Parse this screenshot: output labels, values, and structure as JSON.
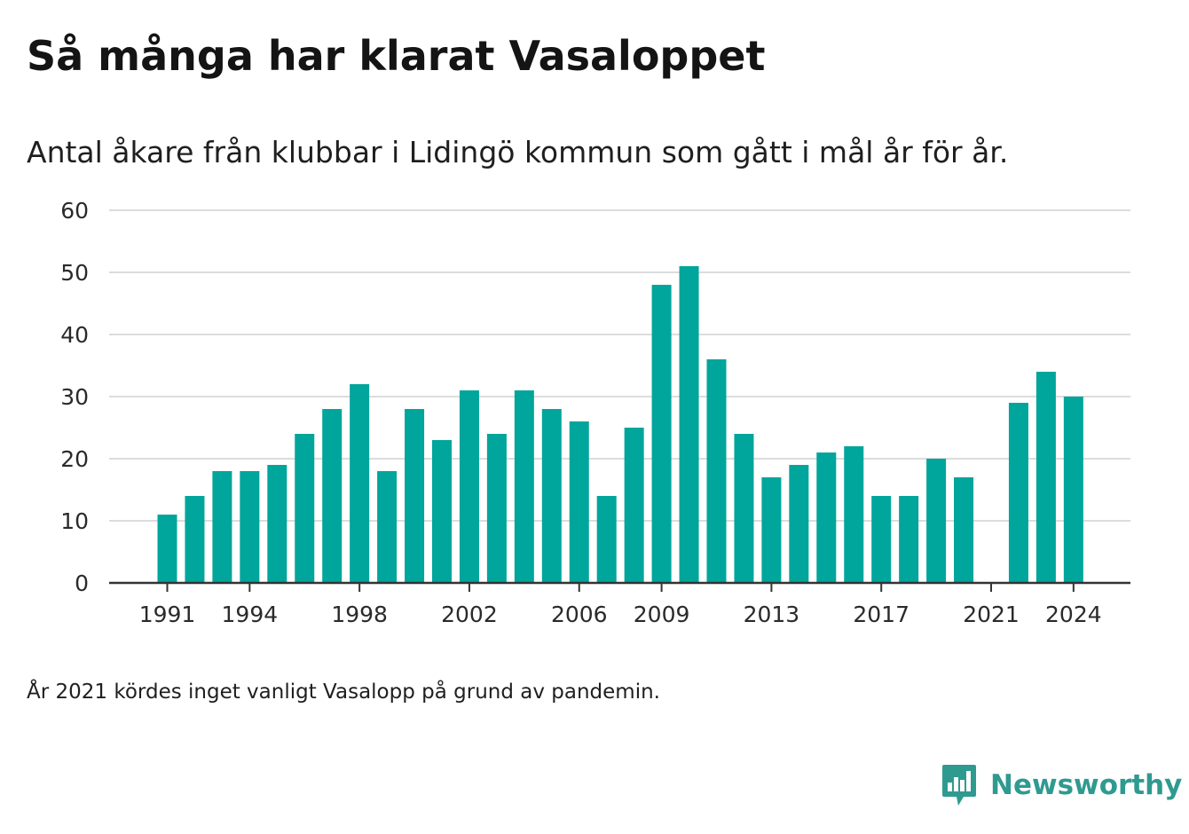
{
  "colors": {
    "bar": "#00a59b",
    "gridline": "#dcdcdc",
    "axis": "#333333",
    "brand": "#2f9a90"
  },
  "footnote": "År 2021 kördes inget vanligt Vasalopp på grund av pandemin.",
  "brand": {
    "name": "Newsworthy",
    "icon": "newsworthy-bar-chart-icon"
  },
  "chart_data": {
    "type": "bar",
    "title": "Så många har klarat Vasaloppet",
    "subtitle": "Antal åkare från klubbar i Lidingö kommun som gått i mål år för år.",
    "xlabel": "",
    "ylabel": "",
    "ylim": [
      0,
      60
    ],
    "yticks": [
      0,
      10,
      20,
      30,
      40,
      50,
      60
    ],
    "xticks": [
      1991,
      1994,
      1998,
      2002,
      2006,
      2009,
      2013,
      2017,
      2021,
      2024
    ],
    "grid": true,
    "legend": "none",
    "categories": [
      1991,
      1992,
      1993,
      1994,
      1995,
      1996,
      1997,
      1998,
      1999,
      2000,
      2001,
      2002,
      2003,
      2004,
      2005,
      2006,
      2007,
      2008,
      2009,
      2010,
      2011,
      2012,
      2013,
      2014,
      2015,
      2016,
      2017,
      2018,
      2019,
      2020,
      2021,
      2022,
      2023,
      2024
    ],
    "values": [
      11,
      14,
      18,
      18,
      19,
      24,
      28,
      32,
      18,
      28,
      23,
      31,
      24,
      31,
      28,
      26,
      14,
      25,
      48,
      51,
      36,
      24,
      17,
      19,
      21,
      22,
      14,
      14,
      20,
      17,
      null,
      29,
      34,
      30
    ]
  }
}
